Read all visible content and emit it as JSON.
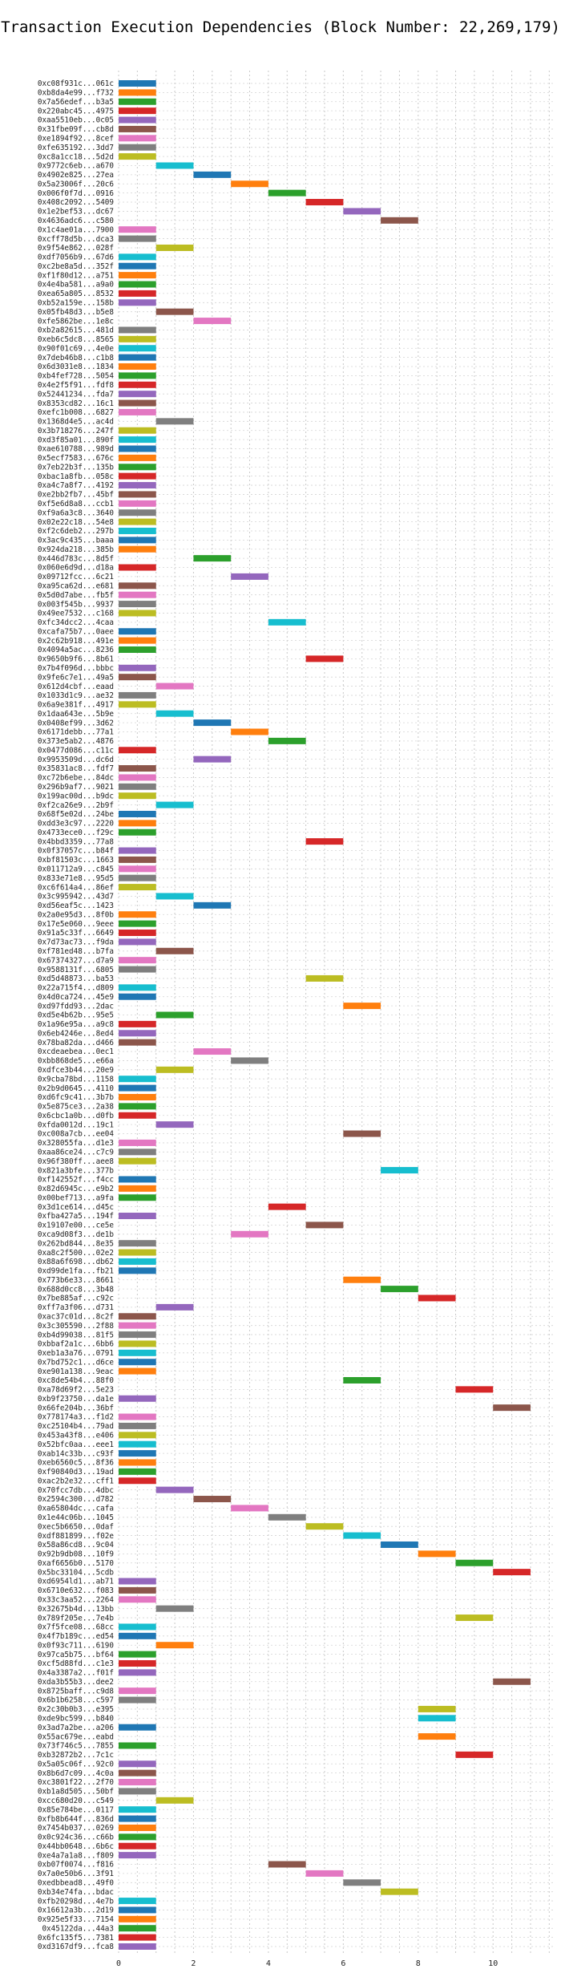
{
  "chart_data": {
    "type": "gantt",
    "title": "Transaction Execution Dependencies (Block Number: 22,269,179)",
    "xlabel": "",
    "ylabel": "",
    "xlim": [
      0,
      11.6
    ],
    "xticks": [
      0,
      2,
      4,
      6,
      8,
      10
    ],
    "grid": true,
    "colors": [
      "#1f77b4",
      "#ff7f0e",
      "#2ca02c",
      "#d62728",
      "#9467bd",
      "#8c564b",
      "#e377c2",
      "#7f7f7f",
      "#bcbd22",
      "#17becf"
    ],
    "transactions": [
      {
        "label": "0xc08f931c...061c",
        "start": 0
      },
      {
        "label": "0xb8da4e99...f732",
        "start": 0
      },
      {
        "label": "0x7a56edef...b3a5",
        "start": 0
      },
      {
        "label": "0x220abc45...4975",
        "start": 0
      },
      {
        "label": "0xaa5510eb...0c05",
        "start": 0
      },
      {
        "label": "0x31fbe09f...cb8d",
        "start": 0
      },
      {
        "label": "0xe1894f92...8cef",
        "start": 0
      },
      {
        "label": "0xfe635192...3dd7",
        "start": 0
      },
      {
        "label": "0xc8a1cc18...5d2d",
        "start": 0
      },
      {
        "label": "0x9772c6eb...a670",
        "start": 1
      },
      {
        "label": "0x4902e825...27ea",
        "start": 2
      },
      {
        "label": "0x5a23006f...20c6",
        "start": 3
      },
      {
        "label": "0x006f0f7d...0916",
        "start": 4
      },
      {
        "label": "0x408c2092...5409",
        "start": 5
      },
      {
        "label": "0x1e2bef53...dc67",
        "start": 6
      },
      {
        "label": "0x4636adc6...c580",
        "start": 7
      },
      {
        "label": "0x1c4ae01a...7900",
        "start": 0
      },
      {
        "label": "0xcff78d5b...dca3",
        "start": 0
      },
      {
        "label": "0x9f54e862...028f",
        "start": 1
      },
      {
        "label": "0xdf7056b9...67d6",
        "start": 0
      },
      {
        "label": "0xc2be8a5d...352f",
        "start": 0
      },
      {
        "label": "0xf1f80d12...a751",
        "start": 0
      },
      {
        "label": "0x4e4ba581...a9a0",
        "start": 0
      },
      {
        "label": "0xea65a805...8532",
        "start": 0
      },
      {
        "label": "0xb52a159e...158b",
        "start": 0
      },
      {
        "label": "0x05fb48d3...b5e8",
        "start": 1
      },
      {
        "label": "0xfe5862be...1e8c",
        "start": 2
      },
      {
        "label": "0xb2a82615...481d",
        "start": 0
      },
      {
        "label": "0xeb6c5dc8...8565",
        "start": 0
      },
      {
        "label": "0x90f01c69...4e0e",
        "start": 0
      },
      {
        "label": "0x7deb46b8...c1b8",
        "start": 0
      },
      {
        "label": "0x6d3031e8...1834",
        "start": 0
      },
      {
        "label": "0xb4fef728...5054",
        "start": 0
      },
      {
        "label": "0x4e2f5f91...fdf8",
        "start": 0
      },
      {
        "label": "0x52441234...fda7",
        "start": 0
      },
      {
        "label": "0x8353cd82...16c1",
        "start": 0
      },
      {
        "label": "0xefc1b008...6827",
        "start": 0
      },
      {
        "label": "0x1368d4e5...ac4d",
        "start": 1
      },
      {
        "label": "0x3b718276...247f",
        "start": 0
      },
      {
        "label": "0xd3f85a01...890f",
        "start": 0
      },
      {
        "label": "0xae610788...989d",
        "start": 0
      },
      {
        "label": "0x5ecf7583...676c",
        "start": 0
      },
      {
        "label": "0x7eb22b3f...135b",
        "start": 0
      },
      {
        "label": "0xbac1a8fb...058c",
        "start": 0
      },
      {
        "label": "0xa4c7a8f7...4192",
        "start": 0
      },
      {
        "label": "0xe2bb2fb7...45bf",
        "start": 0
      },
      {
        "label": "0xf5e6d8a8...ccb1",
        "start": 0
      },
      {
        "label": "0xf9a6a3c8...3640",
        "start": 0
      },
      {
        "label": "0x02e22c18...54e8",
        "start": 0
      },
      {
        "label": "0xf2c6deb2...297b",
        "start": 0
      },
      {
        "label": "0x3ac9c435...baaa",
        "start": 0
      },
      {
        "label": "0x924da218...385b",
        "start": 0
      },
      {
        "label": "0x446d783c...8d5f",
        "start": 2
      },
      {
        "label": "0x060e6d9d...d18a",
        "start": 0
      },
      {
        "label": "0x09712fcc...6c21",
        "start": 3
      },
      {
        "label": "0xa95ca62d...e681",
        "start": 0
      },
      {
        "label": "0x5d0d7abe...fb5f",
        "start": 0
      },
      {
        "label": "0x003f545b...9937",
        "start": 0
      },
      {
        "label": "0x49ee7532...c168",
        "start": 0
      },
      {
        "label": "0xfc34dcc2...4caa",
        "start": 4
      },
      {
        "label": "0xcafa75b7...0aee",
        "start": 0
      },
      {
        "label": "0x2c62b918...491e",
        "start": 0
      },
      {
        "label": "0x4094a5ac...8236",
        "start": 0
      },
      {
        "label": "0x9650b9f6...8b61",
        "start": 5
      },
      {
        "label": "0x7b4f096d...bbbc",
        "start": 0
      },
      {
        "label": "0x9fe6c7e1...49a5",
        "start": 0
      },
      {
        "label": "0x612d4cbf...eaad",
        "start": 1
      },
      {
        "label": "0x1033d1c9...ae32",
        "start": 0
      },
      {
        "label": "0x6a9e381f...4917",
        "start": 0
      },
      {
        "label": "0x1daa643e...5b9e",
        "start": 1
      },
      {
        "label": "0x0408ef99...3d62",
        "start": 2
      },
      {
        "label": "0x6171debb...77a1",
        "start": 3
      },
      {
        "label": "0x373e5ab2...4876",
        "start": 4
      },
      {
        "label": "0x0477d086...c11c",
        "start": 0
      },
      {
        "label": "0x9953509d...dc6d",
        "start": 2
      },
      {
        "label": "0x35831ac8...fdf7",
        "start": 0
      },
      {
        "label": "0xc72b6ebe...84dc",
        "start": 0
      },
      {
        "label": "0x296b9af7...9021",
        "start": 0
      },
      {
        "label": "0x199ac00d...b9dc",
        "start": 0
      },
      {
        "label": "0xf2ca26e9...2b9f",
        "start": 1
      },
      {
        "label": "0x68f5e02d...24be",
        "start": 0
      },
      {
        "label": "0xdd3e3c97...2220",
        "start": 0
      },
      {
        "label": "0x4733ece0...f29c",
        "start": 0
      },
      {
        "label": "0x4bbd3359...77a8",
        "start": 5
      },
      {
        "label": "0x0f37057c...b84f",
        "start": 0
      },
      {
        "label": "0xbf81503c...1663",
        "start": 0
      },
      {
        "label": "0x011712a9...c845",
        "start": 0
      },
      {
        "label": "0x833e71e8...95d5",
        "start": 0
      },
      {
        "label": "0xc6f614a4...86ef",
        "start": 0
      },
      {
        "label": "0x3c995942...43d7",
        "start": 1
      },
      {
        "label": "0xd56eaf5c...1423",
        "start": 2
      },
      {
        "label": "0x2a0e95d3...8f0b",
        "start": 0
      },
      {
        "label": "0x17e5e060...9eee",
        "start": 0
      },
      {
        "label": "0x91a5c33f...6649",
        "start": 0
      },
      {
        "label": "0x7d73ac73...f9da",
        "start": 0
      },
      {
        "label": "0xf781ed48...b7fa",
        "start": 1
      },
      {
        "label": "0x67374327...d7a9",
        "start": 0
      },
      {
        "label": "0x9588131f...6805",
        "start": 0
      },
      {
        "label": "0xd5d48873...ba53",
        "start": 5
      },
      {
        "label": "0x22a715f4...d809",
        "start": 0
      },
      {
        "label": "0x4d0ca724...45e9",
        "start": 0
      },
      {
        "label": "0xd97fdd93...2dac",
        "start": 6
      },
      {
        "label": "0xd5e4b62b...95e5",
        "start": 1
      },
      {
        "label": "0x1a96e95a...a9c8",
        "start": 0
      },
      {
        "label": "0x6eb4246e...8ed4",
        "start": 0
      },
      {
        "label": "0x78ba82da...d466",
        "start": 0
      },
      {
        "label": "0xcdeaebea...0ec1",
        "start": 2
      },
      {
        "label": "0xbb868de5...e66a",
        "start": 3
      },
      {
        "label": "0xdfce3b44...20e9",
        "start": 1
      },
      {
        "label": "0x9cba78bd...1158",
        "start": 0
      },
      {
        "label": "0x2b9d0645...4110",
        "start": 0
      },
      {
        "label": "0xd6fc9c41...3b7b",
        "start": 0
      },
      {
        "label": "0x5e875ce3...2a38",
        "start": 0
      },
      {
        "label": "0x6cbc1a0b...d0fb",
        "start": 0
      },
      {
        "label": "0xfda0012d...19c1",
        "start": 1
      },
      {
        "label": "0xc008a7cb...ee04",
        "start": 6
      },
      {
        "label": "0x328055fa...d1e3",
        "start": 0
      },
      {
        "label": "0xaa86ce24...c7c9",
        "start": 0
      },
      {
        "label": "0x96f380ff...aee8",
        "start": 0
      },
      {
        "label": "0x821a3bfe...377b",
        "start": 7
      },
      {
        "label": "0xf142552f...f4cc",
        "start": 0
      },
      {
        "label": "0x82d6945c...e9b2",
        "start": 0
      },
      {
        "label": "0x00bef713...a9fa",
        "start": 0
      },
      {
        "label": "0x3d1ce614...d45c",
        "start": 4
      },
      {
        "label": "0xfba427a5...194f",
        "start": 0
      },
      {
        "label": "0x19107e00...ce5e",
        "start": 5
      },
      {
        "label": "0xca9d08f3...de1b",
        "start": 3
      },
      {
        "label": "0x262bd844...8e35",
        "start": 0
      },
      {
        "label": "0xa8c2f500...02e2",
        "start": 0
      },
      {
        "label": "0x88a6f698...db62",
        "start": 0
      },
      {
        "label": "0xd99de1fa...fb21",
        "start": 0
      },
      {
        "label": "0x773b6e33...8661",
        "start": 6
      },
      {
        "label": "0x688d0cc8...3b48",
        "start": 7
      },
      {
        "label": "0x7be885af...c92c",
        "start": 8
      },
      {
        "label": "0xff7a3f06...d731",
        "start": 1
      },
      {
        "label": "0xac37c01d...8c2f",
        "start": 0
      },
      {
        "label": "0x3c305590...2f88",
        "start": 0
      },
      {
        "label": "0xb4d99038...81f5",
        "start": 0
      },
      {
        "label": "0xbbaf2a1c...6bb6",
        "start": 0
      },
      {
        "label": "0xeb1a3a76...0791",
        "start": 0
      },
      {
        "label": "0x7bd752c1...d6ce",
        "start": 0
      },
      {
        "label": "0xe901a138...9eac",
        "start": 0
      },
      {
        "label": "0xc8de54b4...88f0",
        "start": 6
      },
      {
        "label": "0xa78d69f2...5e23",
        "start": 9
      },
      {
        "label": "0xb9f23750...da1e",
        "start": 0
      },
      {
        "label": "0x66fe204b...36bf",
        "start": 10
      },
      {
        "label": "0x778174a3...f1d2",
        "start": 0
      },
      {
        "label": "0xc25104b4...79ad",
        "start": 0
      },
      {
        "label": "0x453a43f8...e406",
        "start": 0
      },
      {
        "label": "0x52bfc0aa...eee1",
        "start": 0
      },
      {
        "label": "0xab14c33b...c93f",
        "start": 0
      },
      {
        "label": "0xeb6560c5...8f36",
        "start": 0
      },
      {
        "label": "0xf90840d3...19ad",
        "start": 0
      },
      {
        "label": "0xac2b2e32...cff1",
        "start": 0
      },
      {
        "label": "0x70fcc7db...4dbc",
        "start": 1
      },
      {
        "label": "0x2594c300...d782",
        "start": 2
      },
      {
        "label": "0xa65804dc...cafa",
        "start": 3
      },
      {
        "label": "0x1e44c06b...1045",
        "start": 4
      },
      {
        "label": "0xec5b6650...0daf",
        "start": 5
      },
      {
        "label": "0xdf881899...f02e",
        "start": 6
      },
      {
        "label": "0x58a86cd8...9c04",
        "start": 7
      },
      {
        "label": "0x92b9db08...10f9",
        "start": 8
      },
      {
        "label": "0xaf6656b0...5170",
        "start": 9
      },
      {
        "label": "0x5bc33104...5cdb",
        "start": 10
      },
      {
        "label": "0xd6954ld1...ab71",
        "start": 0
      },
      {
        "label": "0x6710e632...f083",
        "start": 0
      },
      {
        "label": "0x33c3aa52...2264",
        "start": 0
      },
      {
        "label": "0x32675b4d...13bb",
        "start": 1
      },
      {
        "label": "0x789f205e...7e4b",
        "start": 9
      },
      {
        "label": "0x7f5fce08...68cc",
        "start": 0
      },
      {
        "label": "0x4f7b189c...ed54",
        "start": 0
      },
      {
        "label": "0x0f93c711...6190",
        "start": 1
      },
      {
        "label": "0x97ca5b75...bf64",
        "start": 0
      },
      {
        "label": "0xcf5d88fd...c1e3",
        "start": 0
      },
      {
        "label": "0x4a3387a2...f01f",
        "start": 0
      },
      {
        "label": "0xda3b55b3...dee2",
        "start": 10
      },
      {
        "label": "0x8725baff...c9d8",
        "start": 0
      },
      {
        "label": "0x6b1b6258...c597",
        "start": 0
      },
      {
        "label": "0x2c30b0b3...e395",
        "start": 8
      },
      {
        "label": "0xde9bc599...b840",
        "start": 8
      },
      {
        "label": "0x3ad7a2be...a206",
        "start": 0
      },
      {
        "label": "0x55ac679e...eabd",
        "start": 8
      },
      {
        "label": "0x73f746c5...7855",
        "start": 0
      },
      {
        "label": "0xb32872b2...7c1c",
        "start": 9
      },
      {
        "label": "0x5a05c06f...92c0",
        "start": 0
      },
      {
        "label": "0x8b6d7c09...4c0a",
        "start": 0
      },
      {
        "label": "0xc3801f22...2f70",
        "start": 0
      },
      {
        "label": "0xb1a8d505...50bf",
        "start": 0
      },
      {
        "label": "0xcc680d20...c549",
        "start": 1
      },
      {
        "label": "0x85e784be...0117",
        "start": 0
      },
      {
        "label": "0xfb8b644f...836d",
        "start": 0
      },
      {
        "label": "0x7454b037...0269",
        "start": 0
      },
      {
        "label": "0x0c924c36...c66b",
        "start": 0
      },
      {
        "label": "0x44bb0648...6b6c",
        "start": 0
      },
      {
        "label": "0xe4a7a1a8...f809",
        "start": 0
      },
      {
        "label": "0xb07f0074...f816",
        "start": 4
      },
      {
        "label": "0x7a0e50b6...3f91",
        "start": 5
      },
      {
        "label": "0xedbbead8...49f0",
        "start": 6
      },
      {
        "label": "0xb34e74fa...bdac",
        "start": 7
      },
      {
        "label": "0xfb20298d...4e7b",
        "start": 0
      },
      {
        "label": "0x16612a3b...2d19",
        "start": 0
      },
      {
        "label": "0x925e5f33...7154",
        "start": 0
      },
      {
        "label": "0x45122da...44a3",
        "start": 0
      },
      {
        "label": "0x6fc135f5...7381",
        "start": 0
      },
      {
        "label": "0xd3167df9...fca8",
        "start": 0
      }
    ]
  }
}
